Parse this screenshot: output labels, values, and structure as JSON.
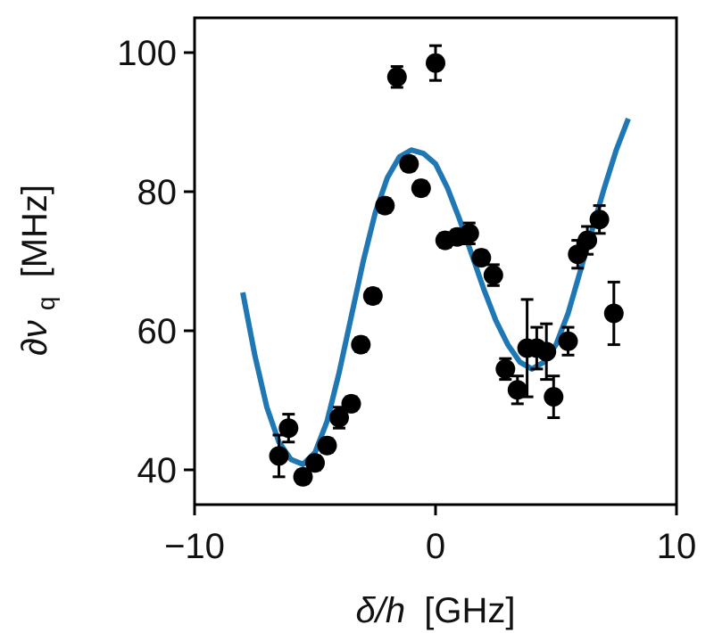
{
  "chart_data": {
    "type": "scatter",
    "title": "",
    "xlabel_main": "δ/h",
    "xlabel_unit": "[GHz]",
    "ylabel_main": "∂ν",
    "ylabel_sub": "q",
    "ylabel_unit": "[MHz]",
    "xlim": [
      -10,
      10
    ],
    "ylim": [
      35,
      105
    ],
    "xticks": [
      -10,
      0,
      10
    ],
    "xtick_labels": [
      "−10",
      "0",
      "10"
    ],
    "yticks": [
      40,
      60,
      80,
      100
    ],
    "ytick_labels": [
      "40",
      "60",
      "80",
      "100"
    ],
    "grid": false,
    "legend": "none",
    "colors": {
      "points": "#000000",
      "fit": "#1f77b4"
    },
    "points": [
      {
        "x": -6.5,
        "y": 42,
        "err": 3
      },
      {
        "x": -6.1,
        "y": 46,
        "err": 2
      },
      {
        "x": -5.5,
        "y": 39,
        "err": 1
      },
      {
        "x": -5.0,
        "y": 41,
        "err": 1
      },
      {
        "x": -4.5,
        "y": 43.5,
        "err": 1
      },
      {
        "x": -4.0,
        "y": 47.5,
        "err": 1.5
      },
      {
        "x": -3.5,
        "y": 49.5,
        "err": 1
      },
      {
        "x": -3.1,
        "y": 58,
        "err": 1
      },
      {
        "x": -2.6,
        "y": 65,
        "err": 1
      },
      {
        "x": -2.1,
        "y": 78,
        "err": 1
      },
      {
        "x": -1.6,
        "y": 96.5,
        "err": 1.5
      },
      {
        "x": -1.1,
        "y": 84,
        "err": 1
      },
      {
        "x": -0.6,
        "y": 80.5,
        "err": 1
      },
      {
        "x": 0.0,
        "y": 98.5,
        "err": 2.5
      },
      {
        "x": 0.4,
        "y": 73,
        "err": 1
      },
      {
        "x": 0.9,
        "y": 73.5,
        "err": 1
      },
      {
        "x": 1.4,
        "y": 74,
        "err": 1.5
      },
      {
        "x": 1.9,
        "y": 70.5,
        "err": 1
      },
      {
        "x": 2.4,
        "y": 68,
        "err": 1.5
      },
      {
        "x": 2.9,
        "y": 54.5,
        "err": 1.5
      },
      {
        "x": 3.4,
        "y": 51.5,
        "err": 2
      },
      {
        "x": 3.8,
        "y": 57.5,
        "err": 7
      },
      {
        "x": 4.2,
        "y": 57.5,
        "err": 3
      },
      {
        "x": 4.6,
        "y": 57,
        "err": 4
      },
      {
        "x": 4.9,
        "y": 50.5,
        "err": 3
      },
      {
        "x": 5.5,
        "y": 58.5,
        "err": 2
      },
      {
        "x": 5.9,
        "y": 71,
        "err": 2
      },
      {
        "x": 6.3,
        "y": 73,
        "err": 2
      },
      {
        "x": 6.8,
        "y": 76,
        "err": 2
      },
      {
        "x": 7.4,
        "y": 62.5,
        "err": 4.5
      }
    ],
    "fit_curve": {
      "x": [
        -8.0,
        -7.5,
        -7.0,
        -6.5,
        -6.0,
        -5.5,
        -5.0,
        -4.5,
        -4.0,
        -3.5,
        -3.0,
        -2.5,
        -2.0,
        -1.5,
        -1.0,
        -0.5,
        0.0,
        0.5,
        1.0,
        1.5,
        2.0,
        2.5,
        3.0,
        3.5,
        4.0,
        4.5,
        5.0,
        5.5,
        6.0,
        6.5,
        7.0,
        7.5,
        8.0
      ],
      "y": [
        65.5,
        56.5,
        49,
        44,
        41.5,
        40.8,
        42.5,
        47,
        54,
        62,
        70,
        77,
        82,
        85,
        86,
        85.5,
        84,
        80.5,
        76,
        71,
        66,
        61.5,
        58,
        55.5,
        54.5,
        55.5,
        58,
        62.5,
        68.5,
        74.5,
        80.5,
        86,
        90.5
      ]
    }
  }
}
